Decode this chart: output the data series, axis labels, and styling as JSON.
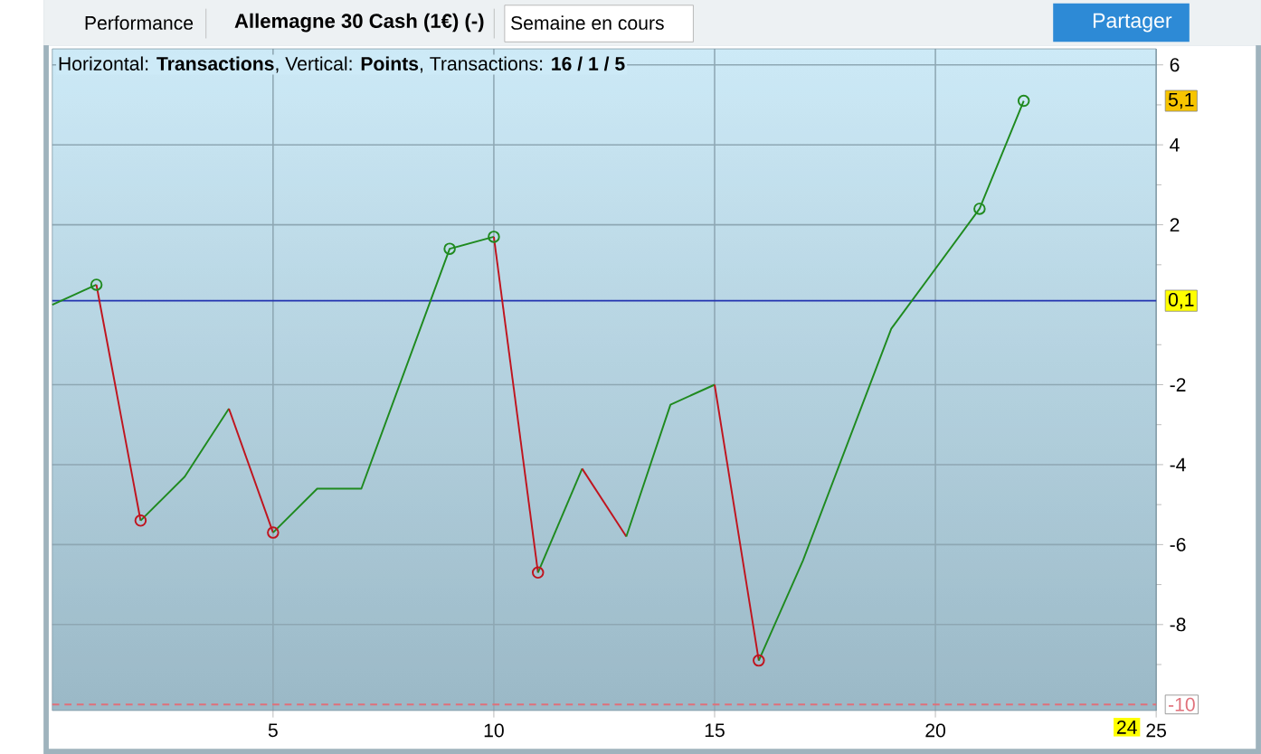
{
  "chart_data": {
    "type": "line",
    "title": "Allemagne 30 Cash (1€) (-)",
    "subtitle": "Horizontal: **Transactions**, Vertical: **Points**, Transactions: **16 / 1 / 5**",
    "xlim": [
      0,
      25
    ],
    "xticks": [
      5,
      10,
      15,
      20,
      25
    ],
    "ylim": [
      -10.15,
      6.4
    ],
    "yticks": [
      6,
      {
        "value": 5,
        "label": null
      },
      4,
      {
        "value": 3,
        "label": null
      },
      2,
      {
        "value": 1,
        "label": null
      },
      {
        "value": -1,
        "label": null
      },
      -2,
      {
        "value": -3,
        "label": null
      },
      -4,
      {
        "value": -5,
        "label": null
      },
      -6,
      {
        "value": -7,
        "label": null
      },
      -8,
      {
        "value": -9,
        "label": null
      }
    ],
    "grid": true,
    "marker": "none",
    "series": [
      {
        "color": "#1f8a1f",
        "x": [
          0,
          1
        ],
        "values": [
          0,
          0.5
        ]
      },
      {
        "color": "#c0141e",
        "x": [
          1,
          2
        ],
        "values": [
          0.5,
          -5.4
        ]
      },
      {
        "color": "#1f8a1f",
        "x": [
          2,
          3,
          4
        ],
        "values": [
          -5.4,
          -4.3,
          -2.6
        ]
      },
      {
        "color": "#c0141e",
        "x": [
          4,
          5
        ],
        "values": [
          -2.6,
          -5.7
        ]
      },
      {
        "color": "#1f8a1f",
        "x": [
          5,
          6,
          7,
          9,
          10
        ],
        "values": [
          -5.7,
          -4.6,
          -4.6,
          1.4,
          1.7
        ]
      },
      {
        "color": "#c0141e",
        "x": [
          10,
          11
        ],
        "values": [
          1.7,
          -6.7
        ]
      },
      {
        "color": "#1f8a1f",
        "x": [
          11,
          12
        ],
        "values": [
          -6.7,
          -4.1
        ]
      },
      {
        "color": "#c0141e",
        "x": [
          12,
          13
        ],
        "values": [
          -4.1,
          -5.8
        ]
      },
      {
        "color": "#1f8a1f",
        "x": [
          13,
          14,
          15
        ],
        "values": [
          -5.8,
          -2.5,
          -2.0
        ]
      },
      {
        "color": "#c0141e",
        "x": [
          15,
          16
        ],
        "values": [
          -2.0,
          -8.9
        ]
      },
      {
        "color": "#1f8a1f",
        "x": [
          16,
          17,
          19,
          21,
          22
        ],
        "values": [
          -8.9,
          -6.4,
          -0.6,
          2.4,
          5.1
        ]
      },
      {
        "type": "scatter",
        "marker": "circle",
        "color": "#1f8a1f",
        "x": [
          1,
          9,
          10,
          21,
          22
        ],
        "values": [
          0.5,
          1.4,
          1.7,
          2.4,
          5.1
        ]
      },
      {
        "type": "scatter",
        "marker": "circle",
        "color": "#c0141e",
        "x": [
          2,
          5,
          11,
          16
        ],
        "values": [
          -5.4,
          -5.7,
          -6.7,
          -8.9
        ]
      }
    ],
    "ref_lines": [
      {
        "axis": "y",
        "value": 0.1,
        "label": "0,1",
        "color": "#2233b0",
        "line_style": "solid"
      },
      {
        "axis": "y",
        "value": -10,
        "label": "-10",
        "color": "#e0707a",
        "line_style": "dashed"
      }
    ],
    "annotations": [
      "Performance",
      "Semaine en cours",
      "Partager",
      "5,1",
      "24"
    ]
  }
}
